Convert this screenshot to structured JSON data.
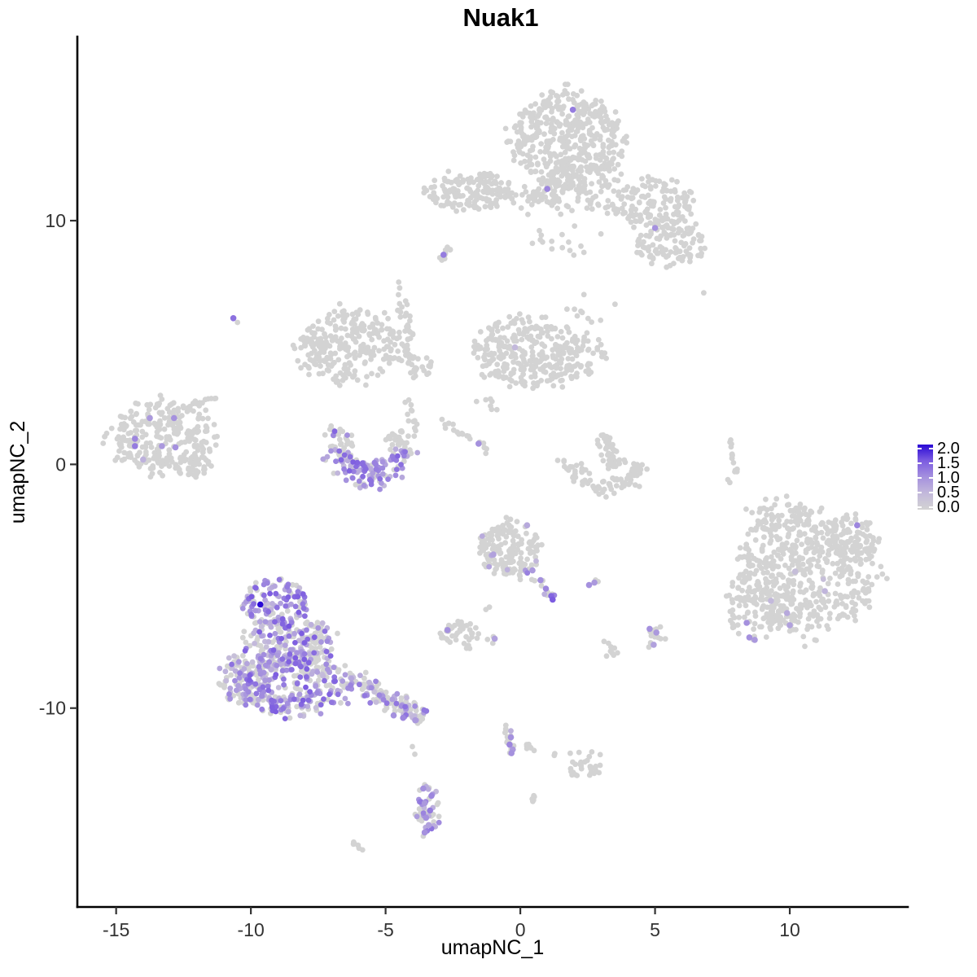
{
  "chart_data": {
    "type": "scatter",
    "title": "Nuak1",
    "xlabel": "umapNC_1",
    "ylabel": "umapNC_2",
    "xlim": [
      -16.44,
      14.38
    ],
    "ylim": [
      -18.16,
      17.55
    ],
    "x_ticks": [
      -15,
      -10,
      -5,
      0,
      5,
      10
    ],
    "y_ticks": [
      -10,
      0,
      10
    ],
    "grid": false,
    "background": "#ffffff",
    "legend": {
      "position": "right",
      "labels": [
        "2.0",
        "1.5",
        "1.0",
        "0.5",
        "0.0"
      ],
      "values": [
        2.0,
        1.5,
        1.0,
        0.5,
        0.0
      ],
      "min": 0,
      "max": 2
    },
    "colors": {
      "zero": "#d3d3d3",
      "scale": [
        "#d3d3d3",
        "#c3b9db",
        "#a591de",
        "#7c5ce0",
        "#2a0ad5"
      ],
      "axis": "#000000"
    },
    "point_radius": 3.4,
    "highlight_radius": 3.8,
    "seed": 11,
    "clusters": [
      {
        "name": "top-blob-main",
        "shape": "blob",
        "cx": 1.7,
        "cy": 13.4,
        "rx": 2.05,
        "ry": 1.95,
        "n": 420,
        "frac": 0,
        "v": [
          0,
          0
        ]
      },
      {
        "name": "top-blob-lower",
        "shape": "blob",
        "cx": 2.5,
        "cy": 11.9,
        "rx": 1.3,
        "ry": 0.9,
        "n": 70,
        "frac": 0,
        "v": [
          0,
          0
        ]
      },
      {
        "name": "top-blob-scatter",
        "shape": "blob",
        "cx": 1.1,
        "cy": 10.9,
        "rx": 1.6,
        "ry": 0.8,
        "n": 35,
        "frac": 0,
        "v": [
          0,
          0
        ]
      },
      {
        "name": "band-left",
        "shape": "blob",
        "cx": -1.9,
        "cy": 11.2,
        "rx": 1.55,
        "ry": 0.8,
        "n": 160,
        "frac": 0,
        "v": [
          0,
          0
        ]
      },
      {
        "name": "band-trail",
        "shape": "strand",
        "x1": -0.5,
        "y1": 11.0,
        "x2": 0.9,
        "y2": 10.9,
        "w": 0.3,
        "n": 22,
        "frac": 0,
        "v": [
          0,
          0
        ]
      },
      {
        "name": "band-clump",
        "shape": "blob",
        "cx": 1.05,
        "cy": 11.2,
        "rx": 0.6,
        "ry": 0.55,
        "n": 28,
        "frac": 0,
        "v": [
          0,
          0
        ]
      },
      {
        "name": "band-right-upper",
        "shape": "blob",
        "cx": 5.0,
        "cy": 10.7,
        "rx": 1.5,
        "ry": 1.05,
        "n": 140,
        "frac": 0,
        "v": [
          0,
          0
        ]
      },
      {
        "name": "band-right-lower",
        "shape": "blob",
        "cx": 5.6,
        "cy": 9.1,
        "rx": 1.3,
        "ry": 1.0,
        "n": 110,
        "frac": 0,
        "v": [
          0,
          0
        ]
      },
      {
        "name": "band-right-conn",
        "shape": "strand",
        "x1": 2.6,
        "y1": 10.8,
        "x2": 3.9,
        "y2": 10.3,
        "w": 0.3,
        "n": 14,
        "frac": 0,
        "v": [
          0,
          0
        ]
      },
      {
        "name": "mid-scatter-upper",
        "shape": "blob",
        "cx": 1.7,
        "cy": 9.2,
        "rx": 1.4,
        "ry": 0.7,
        "n": 16,
        "frac": 0,
        "v": [
          0,
          0
        ]
      },
      {
        "name": "clump-left9",
        "shape": "strand",
        "x1": -3.1,
        "y1": 8.4,
        "x2": -2.5,
        "y2": 8.9,
        "w": 0.2,
        "n": 11,
        "frac": 0,
        "v": [
          0,
          0
        ]
      },
      {
        "name": "dot-right7",
        "shape": "blob",
        "cx": 6.8,
        "cy": 7.0,
        "rx": 0.06,
        "ry": 0.06,
        "n": 1,
        "frac": 0,
        "v": [
          0,
          0
        ]
      },
      {
        "name": "dot-left6-gray",
        "shape": "blob",
        "cx": -10.5,
        "cy": 5.85,
        "rx": 0.08,
        "ry": 0.08,
        "n": 1,
        "frac": 0,
        "v": [
          0,
          0
        ]
      },
      {
        "name": "mid-left",
        "shape": "blob",
        "cx": -6.3,
        "cy": 4.9,
        "rx": 2.0,
        "ry": 1.5,
        "n": 265,
        "frac": 0,
        "v": [
          0,
          0
        ]
      },
      {
        "name": "mid-left-scatter",
        "shape": "strand",
        "x1": -4.6,
        "y1": 4.3,
        "x2": -3.2,
        "y2": 3.9,
        "w": 0.4,
        "n": 18,
        "frac": 0,
        "v": [
          0,
          0
        ]
      },
      {
        "name": "vert-strand",
        "shape": "strand",
        "x1": -4.5,
        "y1": 7.5,
        "x2": -3.9,
        "y2": 3.5,
        "w": 0.25,
        "n": 38,
        "frac": 0,
        "v": [
          0,
          0
        ]
      },
      {
        "name": "cup-arm-conn",
        "shape": "strand",
        "x1": -4.2,
        "y1": 2.7,
        "x2": -3.9,
        "y2": 1.3,
        "w": 0.22,
        "n": 12,
        "frac": 0,
        "v": [
          0,
          0
        ]
      },
      {
        "name": "mid-center",
        "shape": "blob",
        "cx": 0.3,
        "cy": 4.6,
        "rx": 2.0,
        "ry": 1.5,
        "n": 280,
        "frac": 0.004,
        "v": [
          0.4,
          0.6
        ]
      },
      {
        "name": "mid-center-right",
        "shape": "blob",
        "cx": 2.2,
        "cy": 4.5,
        "rx": 1.0,
        "ry": 0.9,
        "n": 55,
        "frac": 0,
        "v": [
          0,
          0
        ]
      },
      {
        "name": "mid-center-topscatter",
        "shape": "blob",
        "cx": 2.8,
        "cy": 6.4,
        "rx": 1.0,
        "ry": 0.7,
        "n": 10,
        "frac": 0,
        "v": [
          0,
          0
        ]
      },
      {
        "name": "mid-sparse-low",
        "shape": "blob",
        "cx": -1.2,
        "cy": 2.4,
        "rx": 0.6,
        "ry": 0.5,
        "n": 7,
        "frac": 0,
        "v": [
          0,
          0
        ]
      },
      {
        "name": "cup",
        "shape": "arc",
        "cx": -5.55,
        "cy": 0.8,
        "r": 1.2,
        "w": 0.75,
        "a0": 150,
        "a1": 390,
        "n": 195,
        "frac": 0.42,
        "v": [
          0.45,
          1.5
        ],
        "bias": "bottom"
      },
      {
        "name": "diag-strand",
        "shape": "strand",
        "x1": -2.95,
        "y1": 1.8,
        "x2": -1.15,
        "y2": 0.55,
        "w": 0.2,
        "n": 19,
        "frac": 0,
        "v": [
          0,
          0
        ]
      },
      {
        "name": "left-island",
        "shape": "blob",
        "cx": -13.3,
        "cy": 1.1,
        "rx": 1.95,
        "ry": 1.5,
        "n": 265,
        "frac": 0,
        "v": [
          0,
          0
        ]
      },
      {
        "name": "left-island-bump",
        "shape": "blob",
        "cx": -12.3,
        "cy": 0.0,
        "rx": 0.85,
        "ry": 0.5,
        "n": 45,
        "frac": 0,
        "v": [
          0,
          0
        ]
      },
      {
        "name": "left-island-trail",
        "shape": "strand",
        "x1": -12.4,
        "y1": 2.3,
        "x2": -11.3,
        "y2": 2.8,
        "w": 0.22,
        "n": 13,
        "frac": 0,
        "v": [
          0,
          0
        ]
      },
      {
        "name": "check-vert",
        "shape": "strand",
        "x1": 3.0,
        "y1": 1.2,
        "x2": 3.55,
        "y2": -0.1,
        "w": 0.42,
        "n": 48,
        "frac": 0,
        "v": [
          0,
          0
        ]
      },
      {
        "name": "check-bowl",
        "shape": "arc",
        "cx": 3.2,
        "cy": 0.35,
        "r": 1.3,
        "w": 0.5,
        "a0": 195,
        "a1": 345,
        "n": 72,
        "frac": 0,
        "v": [
          0,
          0
        ]
      },
      {
        "name": "check-tail",
        "shape": "strand",
        "x1": 1.4,
        "y1": 0.2,
        "x2": 2.0,
        "y2": -0.5,
        "w": 0.2,
        "n": 8,
        "frac": 0,
        "v": [
          0,
          0
        ]
      },
      {
        "name": "thin-strand",
        "shape": "strand",
        "x1": 7.75,
        "y1": 1.1,
        "x2": 8.05,
        "y2": -0.35,
        "w": 0.12,
        "n": 15,
        "frac": 0,
        "v": [
          0,
          0
        ]
      },
      {
        "name": "thin-strand-dots",
        "shape": "blob",
        "cx": 7.7,
        "cy": -0.6,
        "rx": 0.15,
        "ry": 0.15,
        "n": 2,
        "frac": 0,
        "v": [
          0,
          0
        ]
      },
      {
        "name": "center-bottom",
        "shape": "blob",
        "cx": -0.45,
        "cy": -3.5,
        "rx": 1.15,
        "ry": 1.15,
        "n": 165,
        "frac": 0.02,
        "v": [
          0.4,
          0.8
        ]
      },
      {
        "name": "center-bottom-strand",
        "shape": "strand",
        "x1": 0.1,
        "y1": -4.1,
        "x2": 1.2,
        "y2": -5.5,
        "w": 0.2,
        "n": 14,
        "frac": 0.3,
        "v": [
          0.6,
          1.2
        ]
      },
      {
        "name": "center-bottom-below",
        "shape": "blob",
        "cx": -1.25,
        "cy": -5.8,
        "rx": 0.15,
        "ry": 0.25,
        "n": 2,
        "frac": 0,
        "v": [
          0,
          0
        ]
      },
      {
        "name": "pair-right-gray",
        "shape": "blob",
        "cx": 2.9,
        "cy": -4.8,
        "rx": 0.12,
        "ry": 0.1,
        "n": 2,
        "frac": 0,
        "v": [
          0,
          0
        ]
      },
      {
        "name": "small-left-b",
        "shape": "blob",
        "cx": -2.3,
        "cy": -6.9,
        "rx": 0.75,
        "ry": 0.55,
        "n": 38,
        "frac": 0,
        "v": [
          0,
          0
        ]
      },
      {
        "name": "small-left-below",
        "shape": "blob",
        "cx": -1.9,
        "cy": -7.6,
        "rx": 0.18,
        "ry": 0.18,
        "n": 3,
        "frac": 0,
        "v": [
          0,
          0
        ]
      },
      {
        "name": "tiny-pair",
        "shape": "blob",
        "cx": -1.0,
        "cy": -7.15,
        "rx": 0.25,
        "ry": 0.18,
        "n": 3,
        "frac": 0,
        "v": [
          0,
          0
        ]
      },
      {
        "name": "small-right",
        "shape": "blob",
        "cx": 5.0,
        "cy": -7.1,
        "rx": 0.42,
        "ry": 0.5,
        "n": 13,
        "frac": 0,
        "v": [
          0,
          0
        ]
      },
      {
        "name": "gray-oval",
        "shape": "strand",
        "x1": 3.2,
        "y1": -7.2,
        "x2": 3.45,
        "y2": -7.95,
        "w": 0.25,
        "n": 9,
        "frac": 0,
        "v": [
          0,
          0
        ]
      },
      {
        "name": "main-top-lobe",
        "shape": "blob",
        "cx": -9.1,
        "cy": -5.7,
        "rx": 1.3,
        "ry": 1.05,
        "n": 135,
        "frac": 0.6,
        "v": [
          0.35,
          1.6
        ]
      },
      {
        "name": "main-upper-mid",
        "shape": "blob",
        "cx": -8.6,
        "cy": -7.3,
        "rx": 1.65,
        "ry": 1.0,
        "n": 200,
        "frac": 0.55,
        "v": [
          0.35,
          1.5
        ]
      },
      {
        "name": "main-body",
        "shape": "blob",
        "cx": -8.4,
        "cy": -9.0,
        "rx": 2.1,
        "ry": 1.3,
        "n": 330,
        "frac": 0.5,
        "v": [
          0.35,
          1.5
        ]
      },
      {
        "name": "main-left-edge",
        "shape": "blob",
        "cx": -10.4,
        "cy": -8.8,
        "rx": 0.75,
        "ry": 1.0,
        "n": 75,
        "frac": 0.45,
        "v": [
          0.35,
          1.3
        ]
      },
      {
        "name": "main-tail",
        "shape": "strand",
        "x1": -6.3,
        "y1": -8.7,
        "x2": -3.6,
        "y2": -10.5,
        "w": 0.55,
        "n": 125,
        "frac": 0.4,
        "v": [
          0.35,
          1.3
        ]
      },
      {
        "name": "below-tail",
        "shape": "blob",
        "cx": -3.95,
        "cy": -11.9,
        "rx": 0.15,
        "ry": 0.45,
        "n": 2,
        "frac": 0,
        "v": [
          0,
          0
        ]
      },
      {
        "name": "bottom-strand",
        "shape": "strand",
        "x1": -0.55,
        "y1": -10.6,
        "x2": -0.3,
        "y2": -11.9,
        "w": 0.2,
        "n": 18,
        "frac": 0.15,
        "v": [
          0.5,
          1.0
        ]
      },
      {
        "name": "br-bits-1",
        "shape": "strand",
        "x1": 0.15,
        "y1": -11.5,
        "x2": 0.85,
        "y2": -11.85,
        "w": 0.15,
        "n": 8,
        "frac": 0,
        "v": [
          0,
          0
        ]
      },
      {
        "name": "br-bits-dash",
        "shape": "blob",
        "cx": 1.4,
        "cy": -11.9,
        "rx": 0.18,
        "ry": 0.12,
        "n": 2,
        "frac": 0,
        "v": [
          0,
          0
        ]
      },
      {
        "name": "br-arrow",
        "shape": "blob",
        "cx": 2.35,
        "cy": -12.3,
        "rx": 0.68,
        "ry": 0.6,
        "n": 30,
        "frac": 0,
        "v": [
          0,
          0
        ]
      },
      {
        "name": "br-voval",
        "shape": "strand",
        "x1": 0.45,
        "y1": -13.55,
        "x2": 0.5,
        "y2": -14.05,
        "w": 0.1,
        "n": 6,
        "frac": 0,
        "v": [
          0,
          0
        ]
      },
      {
        "name": "bottom-clump",
        "shape": "blob",
        "cx": -3.45,
        "cy": -14.1,
        "rx": 0.5,
        "ry": 1.15,
        "n": 45,
        "frac": 0.45,
        "v": [
          0.5,
          1.3
        ]
      },
      {
        "name": "dash-sw",
        "shape": "strand",
        "x1": -6.3,
        "y1": -15.5,
        "x2": -5.9,
        "y2": -15.9,
        "w": 0.14,
        "n": 6,
        "frac": 0,
        "v": [
          0,
          0
        ]
      },
      {
        "name": "right-big-main",
        "shape": "blob",
        "cx": 10.6,
        "cy": -4.5,
        "rx": 2.6,
        "ry": 2.55,
        "n": 520,
        "frac": 0.002,
        "v": [
          0.3,
          0.5
        ]
      },
      {
        "name": "right-big-tr",
        "shape": "blob",
        "cx": 12.3,
        "cy": -3.0,
        "rx": 1.0,
        "ry": 1.0,
        "n": 75,
        "frac": 0,
        "v": [
          0,
          0
        ]
      },
      {
        "name": "right-big-left",
        "shape": "blob",
        "cx": 8.6,
        "cy": -5.8,
        "rx": 1.1,
        "ry": 1.3,
        "n": 85,
        "frac": 0,
        "v": [
          0,
          0
        ]
      },
      {
        "name": "right-big-top",
        "shape": "blob",
        "cx": 9.6,
        "cy": -2.1,
        "rx": 1.2,
        "ry": 0.9,
        "n": 55,
        "frac": 0,
        "v": [
          0,
          0
        ]
      }
    ],
    "highlight_points": [
      [
        1.95,
        14.55,
        1.2
      ],
      [
        1.0,
        11.3,
        1.1
      ],
      [
        5.0,
        9.7,
        1.0
      ],
      [
        -2.85,
        8.6,
        1.2
      ],
      [
        -10.65,
        6.0,
        1.3
      ],
      [
        -0.2,
        4.8,
        0.5
      ],
      [
        -1.55,
        0.85,
        1.0
      ],
      [
        -13.75,
        1.9,
        0.9
      ],
      [
        -12.85,
        1.9,
        1.0
      ],
      [
        -14.3,
        1.05,
        1.1
      ],
      [
        -14.3,
        0.75,
        1.2
      ],
      [
        -13.3,
        0.75,
        0.9
      ],
      [
        -12.8,
        0.7,
        1.0
      ],
      [
        -14.0,
        0.2,
        0.6
      ],
      [
        -1.0,
        -3.7,
        0.8
      ],
      [
        0.25,
        -2.5,
        0.7
      ],
      [
        0.45,
        -4.35,
        0.9
      ],
      [
        0.75,
        -4.75,
        1.0
      ],
      [
        0.95,
        -5.1,
        1.1
      ],
      [
        1.15,
        -5.4,
        1.4
      ],
      [
        1.2,
        -5.55,
        1.5
      ],
      [
        2.55,
        -4.95,
        1.0
      ],
      [
        2.75,
        -4.85,
        0.9
      ],
      [
        -2.7,
        -6.8,
        1.0
      ],
      [
        -0.95,
        -7.15,
        0.8
      ],
      [
        4.8,
        -6.75,
        1.0
      ],
      [
        5.05,
        -6.9,
        0.9
      ],
      [
        4.95,
        -7.4,
        0.8
      ],
      [
        -9.65,
        -5.75,
        2.0
      ],
      [
        -4.7,
        -10.3,
        1.0
      ],
      [
        -4.35,
        -10.4,
        1.1
      ],
      [
        -3.9,
        -10.5,
        0.9
      ],
      [
        -0.35,
        -11.2,
        1.0
      ],
      [
        -0.4,
        -11.5,
        1.1
      ],
      [
        -0.28,
        -11.7,
        0.9
      ],
      [
        -0.33,
        -11.85,
        1.0
      ],
      [
        -3.6,
        -13.3,
        1.0
      ],
      [
        -3.3,
        -13.6,
        1.1
      ],
      [
        -3.55,
        -13.9,
        0.9
      ],
      [
        -3.35,
        -14.2,
        1.2
      ],
      [
        -3.5,
        -14.5,
        1.0
      ],
      [
        -3.4,
        -14.8,
        0.8
      ],
      [
        -3.55,
        -15.1,
        1.0
      ],
      [
        12.5,
        -2.5,
        1.1
      ],
      [
        11.3,
        -5.2,
        0.55
      ],
      [
        9.9,
        -6.1,
        0.7
      ],
      [
        10.0,
        -6.6,
        0.8
      ],
      [
        8.4,
        -6.5,
        1.0
      ],
      [
        8.5,
        -7.1,
        1.0
      ],
      [
        8.7,
        -7.2,
        0.9
      ],
      [
        9.3,
        -5.6,
        0.5
      ],
      [
        10.2,
        -4.4,
        0.4
      ]
    ]
  }
}
